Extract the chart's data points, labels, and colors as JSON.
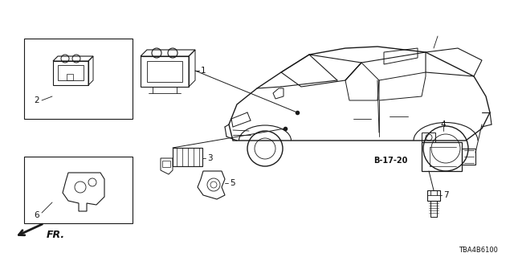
{
  "background_color": "#ffffff",
  "diagram_number": "TBA4B6100",
  "reference_code": "B-17-20",
  "line_color": "#1a1a1a",
  "text_color": "#111111",
  "figsize": [
    6.4,
    3.2
  ],
  "dpi": 100
}
